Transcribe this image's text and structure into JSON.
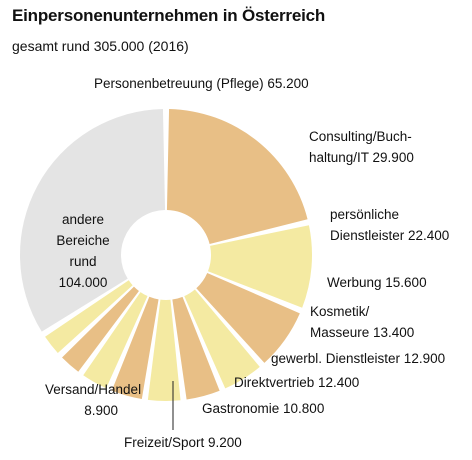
{
  "chart_data": {
    "type": "pie",
    "title": "Einpersonenunternehmen in Österreich",
    "subtitle": "gesamt rund 305.000 (2016)",
    "colors": {
      "orange": "#e8bf86",
      "yellow": "#f4eaa2",
      "gray": "#e4e4e4"
    },
    "slices": [
      {
        "name": "Personenbetreuung (Pflege)",
        "value": 65200,
        "label": [
          "Personenbetreuung (Pflege) 65.200"
        ],
        "color": "orange"
      },
      {
        "name": "Consulting/Buchhaltung/IT",
        "value": 29900,
        "label": [
          "Consulting/Buch-",
          "haltung/IT 29.900"
        ],
        "color": "yellow"
      },
      {
        "name": "persönliche Dienstleister",
        "value": 22400,
        "label": [
          "persönliche",
          "Dienstleister 22.400"
        ],
        "color": "orange"
      },
      {
        "name": "Werbung",
        "value": 15600,
        "label": [
          "Werbung 15.600"
        ],
        "color": "yellow"
      },
      {
        "name": "Kosmetik/Masseure",
        "value": 13400,
        "label": [
          "Kosmetik/",
          "Masseure 13.400"
        ],
        "color": "orange"
      },
      {
        "name": "gewerbl. Dienstleister",
        "value": 12900,
        "label": [
          "gewerbl. Dienstleister 12.900"
        ],
        "color": "yellow"
      },
      {
        "name": "Direktvertrieb",
        "value": 12400,
        "label": [
          "Direktvertrieb 12.400"
        ],
        "color": "orange"
      },
      {
        "name": "Gastronomie",
        "value": 10800,
        "label": [
          "Gastronomie 10.800"
        ],
        "color": "yellow"
      },
      {
        "name": "Freizeit/Sport",
        "value": 9200,
        "label": [
          "Freizeit/Sport 9.200"
        ],
        "color": "orange"
      },
      {
        "name": "Versand/Handel",
        "value": 8900,
        "label": [
          "Versand/Handel",
          "8.900"
        ],
        "color": "yellow"
      },
      {
        "name": "andere Bereiche",
        "value": 104000,
        "label": [
          "andere",
          "Bereiche",
          "rund",
          "104.000"
        ],
        "color": "gray"
      }
    ]
  }
}
